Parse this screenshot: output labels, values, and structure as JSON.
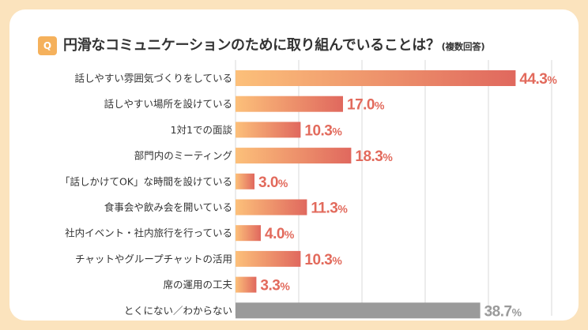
{
  "question": {
    "badge": "Q",
    "title": "円滑なコミュニケーションのために取り組んでいることは？",
    "subtitle": "(複数回答)"
  },
  "colors": {
    "background": "#fbe3bd",
    "badge": "#f5b15c",
    "bar_start": "#fcc07a",
    "bar_end": "#e0685e",
    "value_text": "#e26a5c",
    "other_bar": "#9a9a9a",
    "other_text": "#9a9a9a",
    "grid": "#d9d9d9"
  },
  "chart_data": {
    "type": "bar",
    "orientation": "horizontal",
    "categories": [
      "話しやすい雰囲気づくりをしている",
      "話しやすい場所を設けている",
      "1対1での面談",
      "部門内のミーティング",
      "「話しかけてOK」な時間を設けている",
      "食事会や飲み会を開いている",
      "社内イベント・社内旅行を行っている",
      "チャットやグループチャットの活用",
      "席の運用の工夫",
      "とくにない／わからない"
    ],
    "values": [
      44.3,
      17.0,
      10.3,
      18.3,
      3.0,
      11.3,
      4.0,
      10.3,
      3.3,
      38.7
    ],
    "value_labels": [
      "44.3",
      "17.0",
      "10.3",
      "18.3",
      "3.0",
      "11.3",
      "4.0",
      "10.3",
      "3.3",
      "38.7"
    ],
    "unit": "%",
    "highlight": [
      false,
      false,
      false,
      false,
      false,
      false,
      false,
      false,
      false,
      true
    ],
    "xlim": [
      0,
      50
    ],
    "grid": true
  }
}
